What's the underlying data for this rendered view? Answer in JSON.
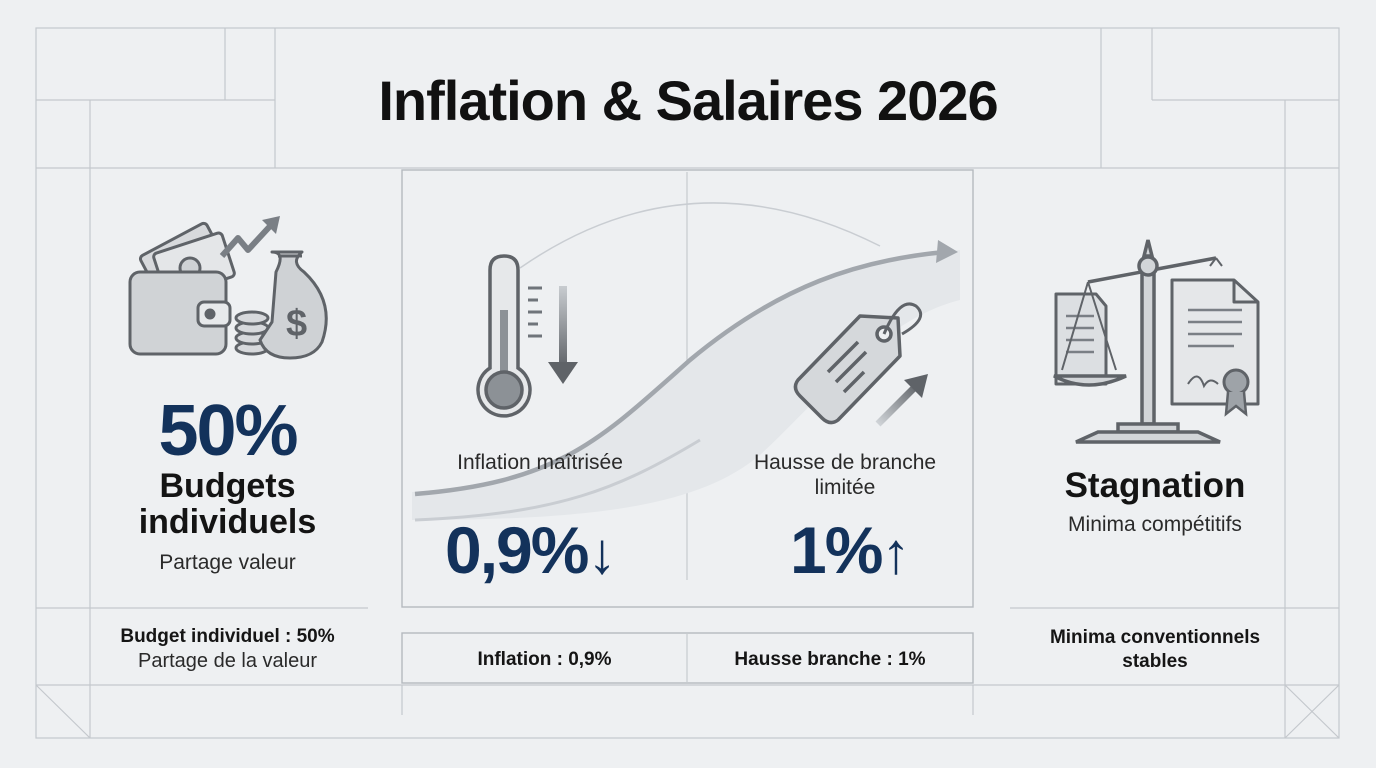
{
  "title": "Inflation & Salaires 2026",
  "colors": {
    "accent": "#13325b",
    "line": "#b9bec4",
    "icon": "#5f6368"
  },
  "left_card": {
    "icon": "wallet-money-icon",
    "value": "50%",
    "heading": "Budgets individuels",
    "subtitle": "Partage valeur"
  },
  "middle_card": {
    "inflation": {
      "icon": "thermometer-down-icon",
      "label": "Inflation maîtrisée",
      "value": "0,9%",
      "arrow": "↓"
    },
    "hausse": {
      "icon": "price-tag-up-icon",
      "label": "Hausse de branche limitée",
      "value": "1%",
      "arrow": "↑"
    }
  },
  "right_card": {
    "icon": "balance-scale-documents-icon",
    "heading": "Stagnation",
    "subtitle": "Minima compétitifs"
  },
  "footer": {
    "left_bold": "Budget individuel : 50%",
    "left_sub": "Partage de la valeur",
    "mid1": "Inflation : 0,9%",
    "mid2": "Hausse branche : 1%",
    "right": "Minima conventionnels stables"
  }
}
